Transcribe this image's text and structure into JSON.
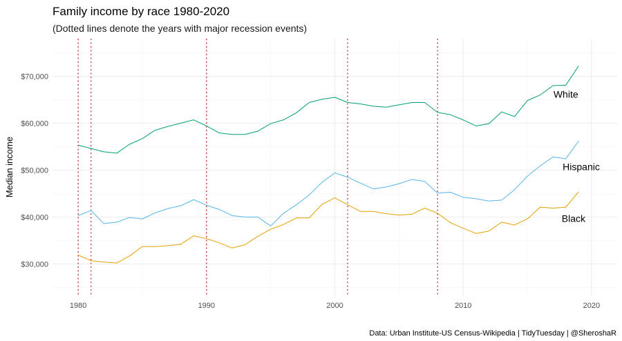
{
  "chart_data": {
    "type": "line",
    "title": "Family income by race 1980-2020",
    "subtitle": "(Dotted lines denote the years with major recession events)",
    "xlabel": "",
    "ylabel": "Median income",
    "caption": "Data: Urban Institute-US Census-Wikipedia | TidyTuesday | @SheroshaR",
    "xlim": [
      1978,
      2022
    ],
    "ylim": [
      23000,
      78000
    ],
    "x_ticks": [
      1980,
      1990,
      2000,
      2010,
      2020
    ],
    "x_minor_ticks": [
      1985,
      1995,
      2005,
      2015
    ],
    "y_ticks": [
      30000,
      40000,
      50000,
      60000,
      70000
    ],
    "y_tick_labels": [
      "$30,000",
      "$40,000",
      "$50,000",
      "$60,000",
      "$70,000"
    ],
    "y_minor_ticks": [
      25000,
      35000,
      45000,
      55000,
      65000,
      75000
    ],
    "grid": true,
    "legend": "none",
    "recession_years": [
      1980,
      1981,
      1990,
      2001,
      2008
    ],
    "recession_color": "#d0535b",
    "x": [
      1980,
      1981,
      1982,
      1983,
      1984,
      1985,
      1986,
      1987,
      1988,
      1989,
      1990,
      1991,
      1992,
      1993,
      1994,
      1995,
      1996,
      1997,
      1998,
      1999,
      2000,
      2001,
      2002,
      2003,
      2004,
      2005,
      2006,
      2007,
      2008,
      2009,
      2010,
      2011,
      2012,
      2013,
      2014,
      2015,
      2016,
      2017,
      2018,
      2019
    ],
    "series": [
      {
        "name": "White",
        "color": "#009e73",
        "values": [
          55300,
          54600,
          53900,
          53600,
          55500,
          56700,
          58500,
          59300,
          60000,
          60700,
          59400,
          57900,
          57600,
          57600,
          58300,
          59900,
          60700,
          62200,
          64400,
          65100,
          65500,
          64400,
          64100,
          63600,
          63400,
          63900,
          64400,
          64400,
          62300,
          61800,
          60700,
          59400,
          59900,
          62400,
          61400,
          64800,
          66000,
          68000,
          68100,
          72200
        ],
        "label_position": [
          2018,
          66000
        ]
      },
      {
        "name": "Hispanic",
        "color": "#56b4e9",
        "values": [
          40300,
          41400,
          38600,
          38900,
          39900,
          39600,
          40900,
          41800,
          42400,
          43700,
          42500,
          41600,
          40300,
          40000,
          40000,
          38100,
          40800,
          42600,
          44700,
          47400,
          49400,
          48500,
          47200,
          46000,
          46400,
          47100,
          48000,
          47600,
          45100,
          45300,
          44200,
          43900,
          43400,
          43600,
          45800,
          48700,
          50900,
          52800,
          52400,
          56200
        ],
        "label_position": [
          2019.2,
          50500
        ]
      },
      {
        "name": "Black",
        "color": "#e69f00",
        "values": [
          31900,
          30700,
          30400,
          30200,
          31700,
          33700,
          33700,
          33900,
          34200,
          36000,
          35400,
          34500,
          33400,
          34100,
          35900,
          37400,
          38400,
          39800,
          39800,
          42700,
          44100,
          42600,
          41200,
          41200,
          40700,
          40400,
          40600,
          41900,
          40800,
          38800,
          37600,
          36500,
          37000,
          38900,
          38300,
          39600,
          42100,
          41900,
          42100,
          45400
        ],
        "label_position": [
          2018.6,
          39500
        ]
      }
    ]
  }
}
